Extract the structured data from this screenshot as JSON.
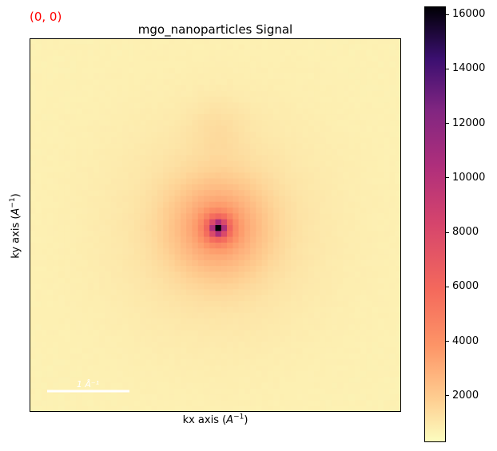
{
  "overlay": {
    "coordinate": "(0, 0)",
    "coordinate_color": "#ff0000"
  },
  "chart_data": {
    "type": "heatmap",
    "title": "mgo_nanoparticles Signal",
    "xlabel": {
      "text": "kx axis (",
      "unit_base": "A",
      "unit_exp": "−1",
      "close": ")"
    },
    "ylabel": {
      "text": "ky axis (",
      "unit_base": "A",
      "unit_exp": "−1",
      "close": ")"
    },
    "colormap": "magma_r",
    "colorbar": {
      "range": [
        300,
        16300
      ],
      "ticks": [
        2000,
        4000,
        6000,
        8000,
        10000,
        12000,
        14000,
        16000
      ],
      "tick_labels": [
        "2000",
        "4000",
        "6000",
        "8000",
        "10000",
        "12000",
        "14000",
        "16000"
      ]
    },
    "grid_size": [
      64,
      64
    ],
    "background_level": 700,
    "center_peak": {
      "value": 16300,
      "col": 32,
      "row": 32
    },
    "scalebar": {
      "label": "1 Å⁻¹",
      "color": "#ffffff",
      "location": "lower-left"
    },
    "grid": false,
    "axes_ticks": false
  }
}
